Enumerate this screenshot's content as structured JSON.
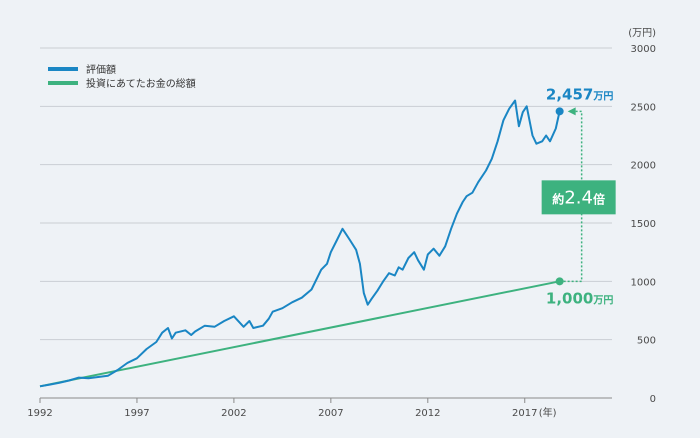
{
  "chart_data": {
    "type": "line",
    "y_unit": "(万円)",
    "x_unit": "(年)",
    "xlim": [
      1992,
      2021.5
    ],
    "ylim": [
      0,
      3000
    ],
    "x_ticks": [
      "1992",
      "1997",
      "2002",
      "2007",
      "2012",
      "2017"
    ],
    "y_ticks": [
      "0",
      "500",
      "1000",
      "1500",
      "2000",
      "2500",
      "3000"
    ],
    "grid": true,
    "legend_position": "top-left",
    "series": [
      {
        "name": "評価額",
        "color": "#1a86c4",
        "points": [
          [
            1992.0,
            100
          ],
          [
            1992.5,
            115
          ],
          [
            1993.0,
            130
          ],
          [
            1993.5,
            150
          ],
          [
            1994.0,
            175
          ],
          [
            1994.5,
            170
          ],
          [
            1995.0,
            180
          ],
          [
            1995.5,
            190
          ],
          [
            1996.0,
            240
          ],
          [
            1996.5,
            300
          ],
          [
            1997.0,
            340
          ],
          [
            1997.5,
            420
          ],
          [
            1998.0,
            480
          ],
          [
            1998.3,
            560
          ],
          [
            1998.6,
            600
          ],
          [
            1998.8,
            510
          ],
          [
            1999.0,
            560
          ],
          [
            1999.5,
            580
          ],
          [
            1999.8,
            540
          ],
          [
            2000.0,
            570
          ],
          [
            2000.5,
            620
          ],
          [
            2001.0,
            610
          ],
          [
            2001.5,
            660
          ],
          [
            2002.0,
            700
          ],
          [
            2002.5,
            610
          ],
          [
            2002.8,
            660
          ],
          [
            2003.0,
            600
          ],
          [
            2003.5,
            620
          ],
          [
            2003.8,
            680
          ],
          [
            2004.0,
            740
          ],
          [
            2004.5,
            770
          ],
          [
            2005.0,
            820
          ],
          [
            2005.5,
            860
          ],
          [
            2006.0,
            930
          ],
          [
            2006.5,
            1100
          ],
          [
            2006.8,
            1150
          ],
          [
            2007.0,
            1250
          ],
          [
            2007.3,
            1350
          ],
          [
            2007.6,
            1450
          ],
          [
            2007.8,
            1400
          ],
          [
            2008.0,
            1350
          ],
          [
            2008.3,
            1270
          ],
          [
            2008.5,
            1150
          ],
          [
            2008.7,
            900
          ],
          [
            2008.9,
            800
          ],
          [
            2009.1,
            850
          ],
          [
            2009.4,
            920
          ],
          [
            2009.7,
            1000
          ],
          [
            2010.0,
            1070
          ],
          [
            2010.3,
            1050
          ],
          [
            2010.5,
            1120
          ],
          [
            2010.7,
            1100
          ],
          [
            2011.0,
            1200
          ],
          [
            2011.3,
            1250
          ],
          [
            2011.5,
            1180
          ],
          [
            2011.8,
            1100
          ],
          [
            2012.0,
            1230
          ],
          [
            2012.3,
            1280
          ],
          [
            2012.6,
            1220
          ],
          [
            2012.9,
            1300
          ],
          [
            2013.2,
            1450
          ],
          [
            2013.5,
            1580
          ],
          [
            2013.8,
            1680
          ],
          [
            2014.0,
            1730
          ],
          [
            2014.3,
            1760
          ],
          [
            2014.6,
            1850
          ],
          [
            2015.0,
            1950
          ],
          [
            2015.3,
            2050
          ],
          [
            2015.6,
            2200
          ],
          [
            2015.9,
            2380
          ],
          [
            2016.2,
            2480
          ],
          [
            2016.5,
            2550
          ],
          [
            2016.7,
            2330
          ],
          [
            2016.9,
            2450
          ],
          [
            2017.1,
            2500
          ],
          [
            2017.4,
            2250
          ],
          [
            2017.6,
            2180
          ],
          [
            2017.9,
            2200
          ],
          [
            2018.1,
            2250
          ],
          [
            2018.3,
            2200
          ],
          [
            2018.6,
            2310
          ],
          [
            2018.8,
            2457
          ]
        ]
      },
      {
        "name": "投資にあてたお金の総額",
        "color": "#3db27f",
        "points": [
          [
            1992.0,
            100
          ],
          [
            2018.8,
            1000
          ]
        ]
      }
    ],
    "annotations": {
      "end_value_number": "2,457",
      "end_value_unit": "万円",
      "invested_number": "1,000",
      "invested_unit": "万円",
      "ratio_prefix": "約",
      "ratio_value": "2.4",
      "ratio_suffix": "倍",
      "end_value_color": "#1a86c4",
      "invested_color": "#3db27f"
    }
  }
}
